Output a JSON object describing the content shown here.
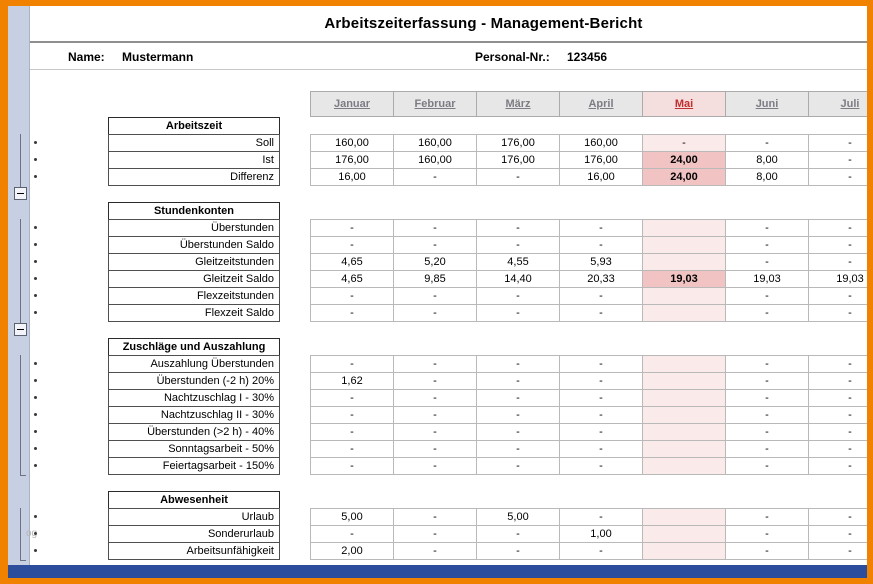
{
  "page_title": "Arbeitszeiterfassung - Management-Bericht",
  "info_bar": {
    "name_label": "Name:",
    "name_value": "Mustermann",
    "personnel_label": "Personal-Nr.:",
    "personnel_value": "123456"
  },
  "colors": {
    "accent_orange": "#F08200",
    "bottom_bar_blue": "#2C4D9C",
    "highlight_red": "#C03030",
    "highlight_cell_bg": "#FBEAEA",
    "highlight_cell_strong_bg": "#F2C3C3"
  },
  "months": [
    "Januar",
    "Februar",
    "März",
    "April",
    "Mai",
    "Juni",
    "Juli"
  ],
  "highlighted_month_index": 4,
  "sections": [
    {
      "title": "Arbeitszeit",
      "rows": [
        {
          "label": "Soll",
          "values": [
            "160,00",
            "160,00",
            "176,00",
            "160,00",
            "-",
            "-",
            "-"
          ]
        },
        {
          "label": "Ist",
          "values": [
            "176,00",
            "160,00",
            "176,00",
            "176,00",
            "24,00",
            "8,00",
            "-"
          ],
          "bold": [
            4
          ]
        },
        {
          "label": "Differenz",
          "values": [
            "16,00",
            "-",
            "-",
            "16,00",
            "24,00",
            "8,00",
            "-"
          ],
          "bold": [
            4
          ]
        }
      ]
    },
    {
      "title": "Stundenkonten",
      "rows": [
        {
          "label": "Überstunden",
          "values": [
            "-",
            "-",
            "-",
            "-",
            "",
            "-",
            "-"
          ]
        },
        {
          "label": "Überstunden Saldo",
          "values": [
            "-",
            "-",
            "-",
            "-",
            "",
            "-",
            "-"
          ]
        },
        {
          "label": "Gleitzeitstunden",
          "values": [
            "4,65",
            "5,20",
            "4,55",
            "5,93",
            "",
            "-",
            "-"
          ]
        },
        {
          "label": "Gleitzeit Saldo",
          "values": [
            "4,65",
            "9,85",
            "14,40",
            "20,33",
            "19,03",
            "19,03",
            "19,03"
          ],
          "bold": [
            4
          ]
        },
        {
          "label": "Flexzeitstunden",
          "values": [
            "-",
            "-",
            "-",
            "-",
            "",
            "-",
            "-"
          ]
        },
        {
          "label": "Flexzeit Saldo",
          "values": [
            "-",
            "-",
            "-",
            "-",
            "",
            "-",
            "-"
          ]
        }
      ]
    },
    {
      "title": "Zuschläge und Auszahlung",
      "rows": [
        {
          "label": "Auszahlung Überstunden",
          "values": [
            "-",
            "-",
            "-",
            "-",
            "",
            "-",
            "-"
          ]
        },
        {
          "label": "Überstunden (-2 h) 20%",
          "values": [
            "1,62",
            "-",
            "-",
            "-",
            "",
            "-",
            "-"
          ]
        },
        {
          "label": "Nachtzuschlag I - 30%",
          "values": [
            "-",
            "-",
            "-",
            "-",
            "",
            "-",
            "-"
          ]
        },
        {
          "label": "Nachtzuschlag II - 30%",
          "values": [
            "-",
            "-",
            "-",
            "-",
            "",
            "-",
            "-"
          ]
        },
        {
          "label": "Überstunden (>2 h) - 40%",
          "values": [
            "-",
            "-",
            "-",
            "-",
            "",
            "-",
            "-"
          ]
        },
        {
          "label": "Sonntagsarbeit - 50%",
          "values": [
            "-",
            "-",
            "-",
            "-",
            "",
            "-",
            "-"
          ]
        },
        {
          "label": "Feiertagsarbeit - 150%",
          "values": [
            "-",
            "-",
            "-",
            "-",
            "",
            "-",
            "-"
          ]
        }
      ]
    },
    {
      "title": "Abwesenheit",
      "rows": [
        {
          "label": "Urlaub",
          "values": [
            "5,00",
            "-",
            "5,00",
            "-",
            "",
            "-",
            "-"
          ]
        },
        {
          "label": "Sonderurlaub",
          "values": [
            "-",
            "-",
            "-",
            "1,00",
            "",
            "-",
            "-"
          ]
        },
        {
          "label": "Arbeitsunfähigkeit",
          "values": [
            "2,00",
            "-",
            "-",
            "-",
            "",
            "-",
            "-"
          ]
        }
      ]
    }
  ],
  "watermark": "og"
}
